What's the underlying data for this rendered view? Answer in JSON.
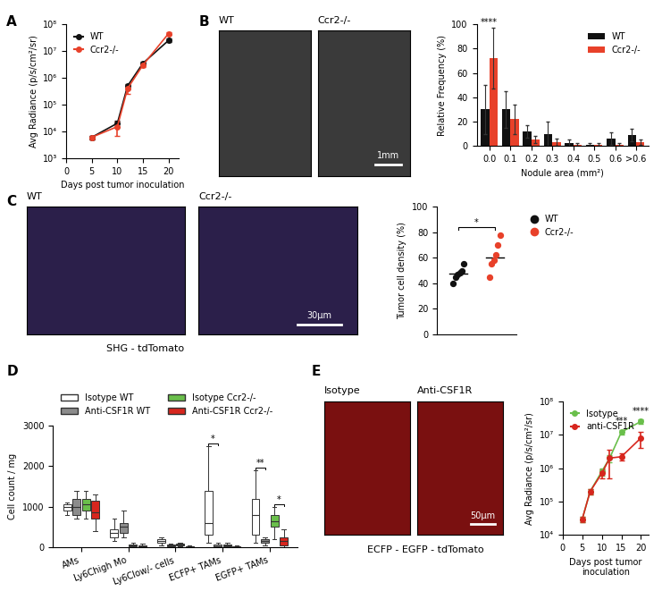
{
  "chart_data": [
    {
      "panel": "A",
      "type": "line",
      "ylabel": "Avg Radiance (p/s/cm²/sr)",
      "xlabel": "Days post tumor inoculation",
      "log": "y",
      "xlim": [
        0,
        22
      ],
      "xticks": [
        0,
        5,
        10,
        15,
        20
      ],
      "ylim": [
        1000,
        100000000
      ],
      "yticks": [
        {
          "value": 1000,
          "label": "10³"
        },
        {
          "value": 10000,
          "label": "10⁴"
        },
        {
          "value": 100000,
          "label": "10⁵"
        },
        {
          "value": 1000000,
          "label": "10⁶"
        },
        {
          "value": 10000000,
          "label": "10⁷"
        },
        {
          "value": 100000000,
          "label": "10⁸"
        }
      ],
      "x": [
        5,
        10,
        12,
        15,
        20
      ],
      "legend": "upper left",
      "marker": "o",
      "series": [
        {
          "name": "WT",
          "color": "#111111",
          "values": [
            6000,
            20000,
            500000,
            3500000,
            25000000
          ],
          "errors": [
            1000,
            5000,
            100000,
            500000,
            4000000
          ]
        },
        {
          "name": "Ccr2-/-",
          "color": "#e8412a",
          "values": [
            6000,
            15000,
            400000,
            3000000,
            45000000
          ],
          "errors": [
            1000,
            8000,
            150000,
            500000,
            6000000
          ]
        }
      ]
    },
    {
      "panel": "B",
      "type": "image",
      "labels": [
        "WT",
        "Ccr2-/-"
      ],
      "scale_bar": "1mm"
    },
    {
      "type": "bar",
      "ylabel": "Relative Frequency (%)",
      "xlabel": "Nodule area (mm²)",
      "categories": [
        "0.0",
        "0.1",
        "0.2",
        "0.3",
        "0.4",
        "0.5",
        "0.6",
        ">0.6"
      ],
      "ylim": [
        0,
        100
      ],
      "yticks": [
        0,
        20,
        40,
        60,
        80,
        100
      ],
      "legend": "upper right",
      "series": [
        {
          "name": "WT",
          "color": "#111111",
          "values": [
            30,
            30,
            12,
            10,
            2,
            1,
            6,
            9
          ],
          "errors": [
            20,
            15,
            5,
            10,
            3,
            1,
            5,
            5
          ]
        },
        {
          "name": "Ccr2-/-",
          "color": "#e8412a",
          "values": [
            72,
            22,
            5,
            3,
            1,
            1,
            1,
            3
          ],
          "errors": [
            25,
            12,
            3,
            3,
            1,
            1,
            1,
            2
          ]
        }
      ],
      "annotations": [
        {
          "text": "****",
          "category": "0.0"
        }
      ]
    },
    {
      "panel": "C",
      "type": "image",
      "labels": [
        "WT",
        "Ccr2-/-"
      ],
      "scale_bar": "30µm",
      "caption": "SHG - tdTomato"
    },
    {
      "type": "scatter",
      "ylabel": "Tumor cell density (%)",
      "ylim": [
        0,
        100
      ],
      "yticks": [
        0,
        20,
        40,
        60,
        80,
        100
      ],
      "tick_labels": "y",
      "legend": "upper left",
      "marker": "o",
      "series": [
        {
          "name": "WT",
          "color": "#111111",
          "values": [
            40,
            45,
            47,
            48,
            50,
            55
          ]
        },
        {
          "name": "Ccr2-/-",
          "color": "#e8412a",
          "values": [
            45,
            55,
            58,
            62,
            70,
            78
          ]
        }
      ],
      "annotations": [
        {
          "text": "*"
        }
      ]
    },
    {
      "panel": "D",
      "type": "box",
      "ylabel": "Cell count / mg",
      "ylim": [
        0,
        3000
      ],
      "yticks": [
        0,
        1000,
        2000,
        3000
      ],
      "categories": [
        "AMs",
        "Ly6Chigh Mo",
        "Ly6Clow/- cells",
        "ECFP+ TAMs",
        "EGFP+ TAMs"
      ],
      "legend": "upper left",
      "series": [
        {
          "name": "Isotype WT",
          "color": "#ffffff",
          "values": [
            [
              800,
              900,
              1000,
              1050,
              1100
            ],
            [
              150,
              250,
              350,
              450,
              700
            ],
            [
              50,
              100,
              150,
              200,
              250
            ],
            [
              100,
              300,
              600,
              1400,
              2500
            ],
            [
              100,
              300,
              800,
              1200,
              1900
            ]
          ]
        },
        {
          "name": "Anti-CSF1R WT",
          "color": "#8c8c8c",
          "values": [
            [
              700,
              800,
              1000,
              1200,
              1400
            ],
            [
              250,
              350,
              500,
              600,
              900
            ],
            [
              0,
              20,
              40,
              60,
              80
            ],
            [
              0,
              10,
              30,
              60,
              100
            ],
            [
              50,
              100,
              150,
              200,
              250
            ]
          ]
        },
        {
          "name": "Isotype Ccr2-/-",
          "color": "#6abf4b",
          "values": [
            [
              700,
              900,
              1050,
              1200,
              1400
            ],
            [
              0,
              20,
              40,
              60,
              100
            ],
            [
              20,
              40,
              60,
              90,
              120
            ],
            [
              0,
              20,
              40,
              60,
              120
            ],
            [
              200,
              500,
              650,
              800,
              1000
            ]
          ]
        },
        {
          "name": "Anti-CSF1R Ccr2-/-",
          "color": "#d7261e",
          "values": [
            [
              400,
              700,
              850,
              1150,
              1300
            ],
            [
              0,
              10,
              20,
              40,
              80
            ],
            [
              0,
              10,
              20,
              30,
              50
            ],
            [
              0,
              5,
              10,
              20,
              40
            ],
            [
              0,
              50,
              150,
              250,
              450
            ]
          ]
        }
      ],
      "annotations": [
        {
          "text": "*",
          "category": "ECFP+ TAMs",
          "series": [
            "Isotype WT",
            "Anti-CSF1R WT"
          ]
        },
        {
          "text": "**",
          "category": "EGFP+ TAMs",
          "series": [
            "Isotype WT",
            "Anti-CSF1R WT"
          ]
        },
        {
          "text": "*",
          "category": "EGFP+ TAMs",
          "series": [
            "Isotype Ccr2-/-",
            "Anti-CSF1R Ccr2-/-"
          ]
        }
      ]
    },
    {
      "panel": "E",
      "type": "image",
      "labels": [
        "Isotype",
        "Anti-CSF1R"
      ],
      "scale_bar": "50µm",
      "caption": "ECFP - EGFP - tdTomato"
    },
    {
      "type": "line",
      "ylabel": "Avg Radiance (p/s/cm²/sr)",
      "xlabel": "Days post tumor inoculation",
      "log": "y",
      "xlim": [
        0,
        22
      ],
      "xticks": [
        0,
        5,
        10,
        15,
        20
      ],
      "ylim": [
        10000,
        100000000
      ],
      "yticks": [
        {
          "value": 10000,
          "label": "10⁴"
        },
        {
          "value": 100000,
          "label": "10⁵"
        },
        {
          "value": 1000000,
          "label": "10⁶"
        },
        {
          "value": 10000000,
          "label": "10⁷"
        },
        {
          "value": 100000000,
          "label": "10⁸"
        }
      ],
      "x": [
        5,
        7,
        10,
        12,
        15,
        20
      ],
      "legend": "upper left",
      "marker": "o",
      "series": [
        {
          "name": "Isotype",
          "color": "#6abf4b",
          "values": [
            30000,
            200000,
            800000,
            2000000,
            12000000,
            25000000
          ],
          "errors": [
            5000,
            40000,
            200000,
            500000,
            2000000,
            4000000
          ]
        },
        {
          "name": "anti-CSF1R",
          "color": "#d7261e",
          "values": [
            30000,
            200000,
            700000,
            2000000,
            2200000,
            8000000
          ],
          "errors": [
            5000,
            40000,
            200000,
            1500000,
            500000,
            4000000
          ]
        }
      ],
      "annotations": [
        {
          "text": "***",
          "x": 15
        },
        {
          "text": "****",
          "x": 20
        }
      ]
    }
  ]
}
